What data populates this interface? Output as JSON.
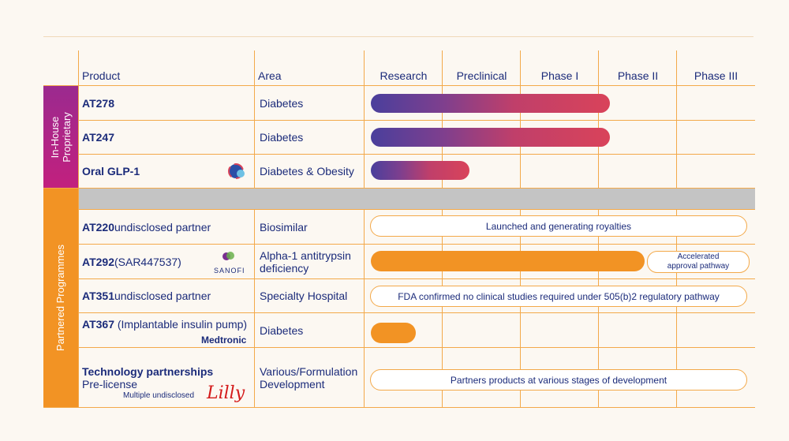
{
  "headers": {
    "product": "Product",
    "area": "Area"
  },
  "groups": {
    "in_house": "In-House Proprietary",
    "in_house_line1": "In-House",
    "in_house_line2": "Proprietary",
    "partnered": "Partnered Programmes"
  },
  "colors": {
    "accent_orange": "#f29324",
    "text_navy": "#1b2b7a",
    "gradient_start": "#4a3f9c",
    "gradient_end": "#d9435a",
    "in_house_band": "#b0257f",
    "separator_gray": "#c4c4c4"
  },
  "chart_data": {
    "type": "bar",
    "categories": [
      "Research",
      "Preclinical",
      "Phase I",
      "Phase II",
      "Phase III"
    ],
    "rows": [
      {
        "product": "AT278",
        "area": "Diabetes",
        "progress_phases": 3.1,
        "style": "gradient"
      },
      {
        "product": "AT247",
        "area": "Diabetes",
        "progress_phases": 3.1,
        "style": "gradient"
      },
      {
        "product": "Oral GLP-1",
        "area": "Diabetes & Obesity",
        "progress_phases": 1.3,
        "style": "gradient",
        "logo": "globe-logo-icon"
      },
      {
        "product": "AT220",
        "product_suffix": " undisclosed partner",
        "area": "Biosimilar",
        "status_text": "Launched and generating royalties",
        "style": "pill"
      },
      {
        "product": "AT292",
        "product_suffix": " (SAR447537)",
        "area": "Alpha-1 antitrypsin deficiency",
        "area_line1": "Alpha-1 antitrypsin",
        "area_line2": "deficiency",
        "progress_phases": 3.55,
        "style": "orange",
        "note_line1": "Accelerated",
        "note_line2": "approval pathway",
        "logo_text": "SANOFI"
      },
      {
        "product": "AT351",
        "product_suffix": " undisclosed partner",
        "area": "Specialty Hospital",
        "status_text": "FDA confirmed no clinical studies required under 505(b)2 regulatory  pathway",
        "style": "pill"
      },
      {
        "product": "AT367",
        "product_suffix": " (Implantable insulin pump)",
        "area": "Diabetes",
        "progress_phases": 0.62,
        "style": "orange",
        "logo_text": "Medtronic"
      },
      {
        "product": "Technology partnerships",
        "product_line2": "Pre-license",
        "product_line3": "Multiple undisclosed",
        "area_line1": "Various/Formulation",
        "area_line2": "Development",
        "status_text": "Partners products at various stages of development",
        "style": "pill",
        "logo_text": "Lilly"
      }
    ]
  }
}
